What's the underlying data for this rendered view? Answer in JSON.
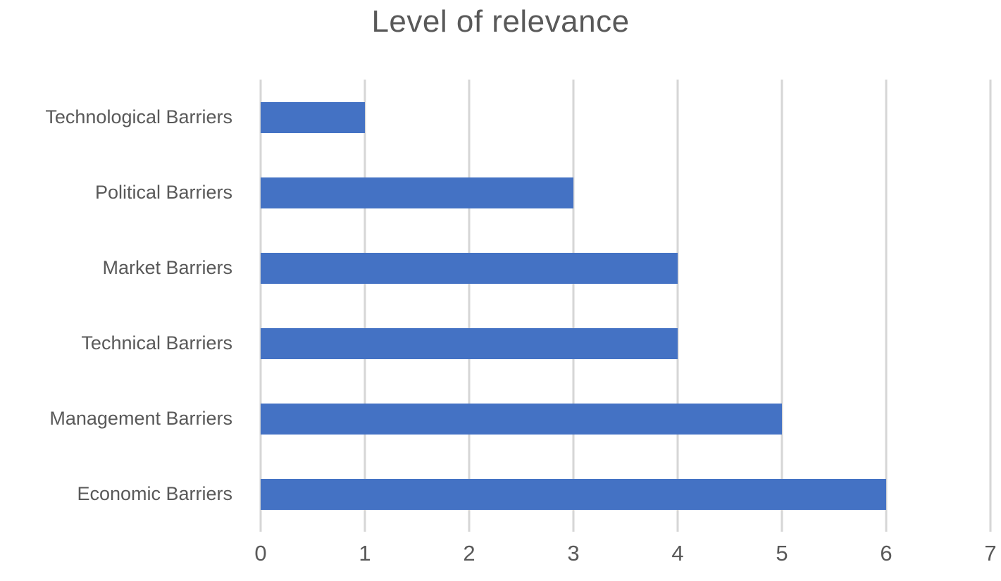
{
  "chart_data": {
    "type": "bar",
    "orientation": "horizontal",
    "title": "Level of relevance",
    "categories": [
      "Technological Barriers",
      "Political Barriers",
      "Market Barriers",
      "Technical Barriers",
      "Management Barriers",
      "Economic Barriers"
    ],
    "values": [
      1,
      3,
      4,
      4,
      5,
      6
    ],
    "xlabel": "",
    "ylabel": "",
    "xlim": [
      0,
      7
    ],
    "x_ticks": [
      0,
      1,
      2,
      3,
      4,
      5,
      6,
      7
    ],
    "grid": true,
    "legend_position": "none",
    "colors": {
      "bar": "#4472c4",
      "gridline": "#d6d6d6",
      "text": "#595959"
    }
  }
}
